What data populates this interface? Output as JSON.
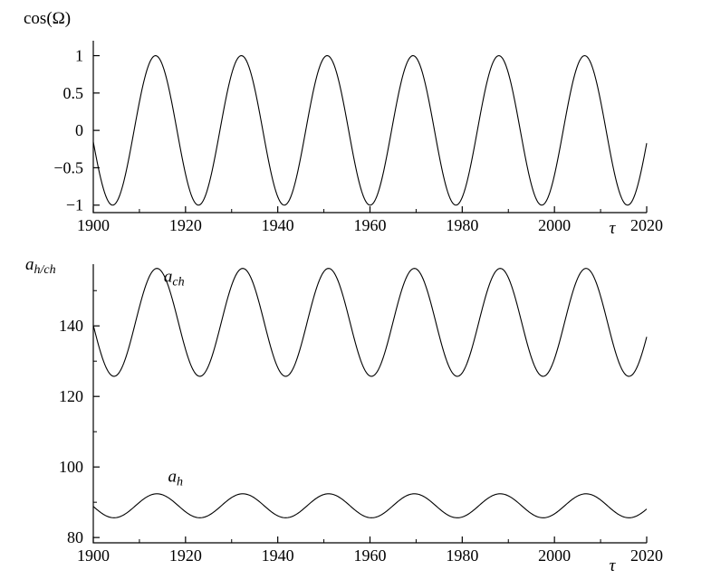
{
  "figure": {
    "background": "#ffffff",
    "line_color": "#000000",
    "description": "Two stacked line plots sharing a time axis from 1900 to 2020 showing the 18.61-year lunar nodal cycle"
  },
  "chart_data": [
    {
      "type": "line",
      "title": "",
      "ylabel": "cos(Ω)",
      "xlabel": "τ",
      "xlim": [
        1900,
        2020
      ],
      "ylim": [
        -1.1,
        1.2
      ],
      "xticks": [
        1900,
        1920,
        1940,
        1960,
        1980,
        2000,
        2020
      ],
      "yticks": [
        1,
        0.5,
        0,
        -0.5,
        -1
      ],
      "x_minor_step": 10,
      "grid": false,
      "legend": "none",
      "series": [
        {
          "name": "cos-omega",
          "model": "cosine",
          "mean": 0,
          "amplitude": 1,
          "period_years": 18.61,
          "peak_year": 1913.5,
          "peak_years": [
            1913.5,
            1932.1,
            1950.7,
            1969.3,
            1987.9,
            2006.6
          ],
          "min_years": [
            1904.2,
            1922.8,
            1941.4,
            1960.0,
            1978.6,
            1997.2,
            2015.9
          ],
          "max_value": 1,
          "min_value": -1,
          "value_at_1900": -0.15,
          "value_at_2020": -0.17
        }
      ]
    },
    {
      "type": "line",
      "title": "",
      "ylabel_main": "a",
      "ylabel_sub": "h/ch",
      "xlabel": "τ",
      "xlim": [
        1900,
        2020
      ],
      "ylim": [
        78.5,
        157.5
      ],
      "xticks": [
        1900,
        1920,
        1940,
        1960,
        1980,
        2000,
        2020
      ],
      "yticks": [
        80,
        100,
        120,
        140
      ],
      "x_minor_step": 10,
      "y_minor_step": 10,
      "grid": false,
      "legend": "none",
      "series": [
        {
          "name": "a-ch",
          "label_main": "a",
          "label_sub": "ch",
          "model": "cosine",
          "mean": 141,
          "amplitude": 15.3,
          "period_years": 18.61,
          "peak_year": 1913.8,
          "max_value": 156.3,
          "min_value": 125.7,
          "value_at_1900": 138.5,
          "value_at_2020": 138.4,
          "label_pos": [
            1915.3,
            152.5
          ]
        },
        {
          "name": "a-h",
          "label_main": "a",
          "label_sub": "h",
          "model": "cosine",
          "mean": 89,
          "amplitude": 3.4,
          "period_years": 18.61,
          "peak_year": 1913.8,
          "max_value": 92.4,
          "min_value": 85.6,
          "value_at_1900": 88.5,
          "value_at_2020": 88.4,
          "label_pos": [
            1916.2,
            95.8
          ]
        }
      ]
    }
  ]
}
